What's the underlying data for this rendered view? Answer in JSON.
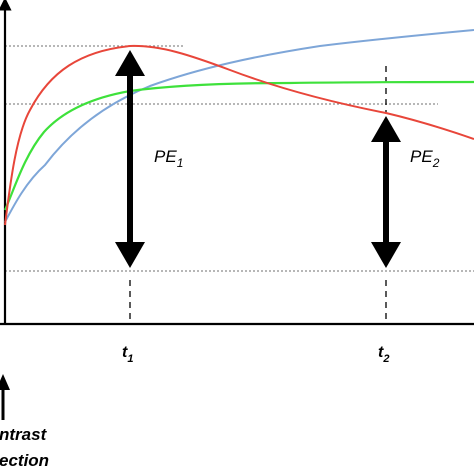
{
  "labels": {
    "pe1_main": "PE",
    "pe1_sub": "1",
    "pe2_main": "PE",
    "pe2_sub": "2",
    "t1_main": "t",
    "t1_sub": "1",
    "t2_main": "t",
    "t2_sub": "2",
    "injection_line1": "ntrast",
    "injection_line2": "ection"
  },
  "colors": {
    "red_curve": "#e8463a",
    "blue_curve": "#7ea6d8",
    "green_curve": "#3ee13b",
    "arrows": "#000000",
    "guides": "#8c8c8c",
    "axes": "#000000"
  }
}
